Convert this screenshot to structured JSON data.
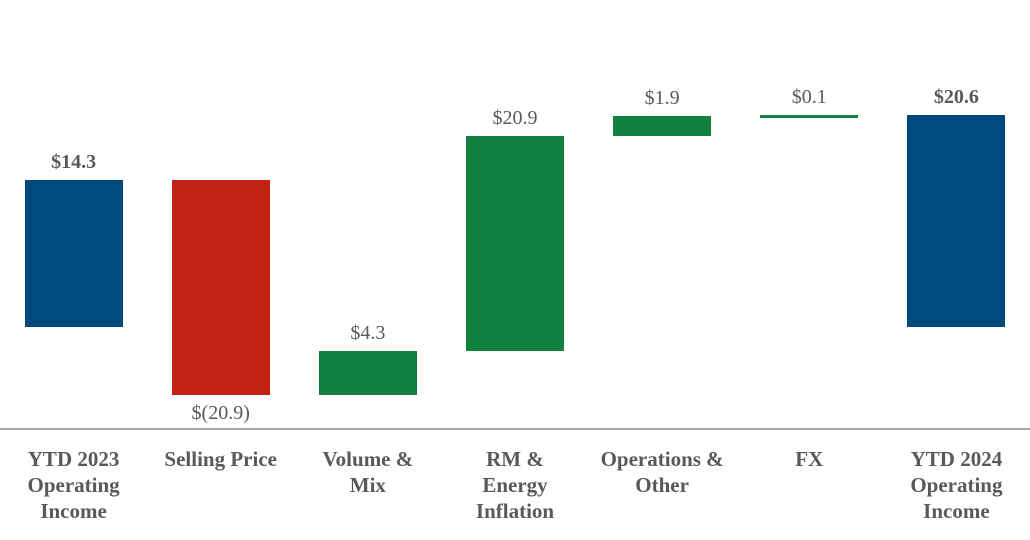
{
  "chart_data": {
    "type": "bar",
    "subtype": "waterfall",
    "title": "",
    "xlabel": "",
    "ylabel": "",
    "grid": false,
    "legend": false,
    "y_axis_visible": false,
    "x_axis_line_visible": true,
    "ylim": [
      -9.9,
      31.8
    ],
    "categories": [
      "YTD 2023 Operating Income",
      "Selling Price",
      "Volume & Mix",
      "RM & Energy Inflation",
      "Operations & Other",
      "FX",
      "YTD 2024 Operating Income"
    ],
    "category_label_lines": [
      [
        "YTD 2023",
        "Operating",
        "Income"
      ],
      [
        "Selling Price"
      ],
      [
        "Volume &",
        "Mix"
      ],
      [
        "RM &",
        "Energy",
        "Inflation"
      ],
      [
        "Operations &",
        "Other"
      ],
      [
        "FX"
      ],
      [
        "YTD 2024",
        "Operating",
        "Income"
      ]
    ],
    "bars": [
      {
        "category": "YTD 2023 Operating Income",
        "value": 14.3,
        "display_label": "$14.3",
        "role": "total",
        "label_bold": true,
        "label_position": "above"
      },
      {
        "category": "Selling Price",
        "value": -20.9,
        "display_label": "$(20.9)",
        "role": "decrease",
        "label_bold": false,
        "label_position": "below"
      },
      {
        "category": "Volume & Mix",
        "value": 4.3,
        "display_label": "$4.3",
        "role": "increase",
        "label_bold": false,
        "label_position": "above"
      },
      {
        "category": "RM & Energy Inflation",
        "value": 20.9,
        "display_label": "$20.9",
        "role": "increase",
        "label_bold": false,
        "label_position": "above"
      },
      {
        "category": "Operations & Other",
        "value": 1.9,
        "display_label": "$1.9",
        "role": "increase",
        "label_bold": false,
        "label_position": "above"
      },
      {
        "category": "FX",
        "value": 0.1,
        "display_label": "$0.1",
        "role": "increase",
        "label_bold": false,
        "label_position": "above"
      },
      {
        "category": "YTD 2024 Operating Income",
        "value": 20.6,
        "display_label": "$20.6",
        "role": "total",
        "label_bold": true,
        "label_position": "above"
      }
    ],
    "cumulative_totals": [
      14.3,
      -6.6,
      -2.3,
      18.6,
      20.5,
      20.6,
      20.6
    ],
    "colors": {
      "total": "#00497E",
      "increase": "#12813F",
      "decrease": "#C22214"
    },
    "label_color": "#595959",
    "axis_line_color": "#A6A6A6"
  }
}
